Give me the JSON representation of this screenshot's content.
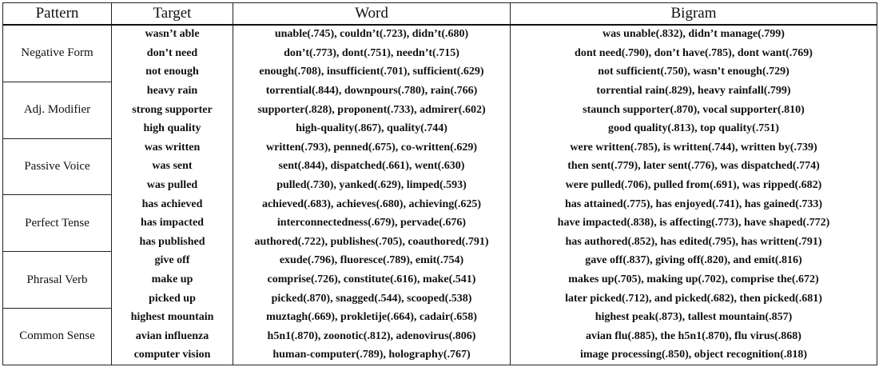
{
  "table": {
    "headers": {
      "pattern": "Pattern",
      "target": "Target",
      "word": "Word",
      "bigram": "Bigram"
    },
    "groups": [
      {
        "pattern": "Negative Form",
        "rows": [
          {
            "target": "wasn’t able",
            "word": "unable(.745), couldn’t(.723), didn’t(.680)",
            "bigram": "was unable(.832), didn’t manage(.799)"
          },
          {
            "target": "don’t need",
            "word": "don’t(.773), dont(.751), needn’t(.715)",
            "bigram": "dont need(.790), don’t have(.785), dont want(.769)"
          },
          {
            "target": "not enough",
            "word": "enough(.708), insufficient(.701), sufficient(.629)",
            "bigram": "not sufficient(.750), wasn’t enough(.729)"
          }
        ]
      },
      {
        "pattern": "Adj. Modifier",
        "rows": [
          {
            "target": "heavy rain",
            "word": "torrential(.844), downpours(.780), rain(.766)",
            "bigram": "torrential rain(.829), heavy rainfall(.799)"
          },
          {
            "target": "strong supporter",
            "word": "supporter(.828), proponent(.733), admirer(.602)",
            "bigram": "staunch supporter(.870), vocal supporter(.810)"
          },
          {
            "target": "high quality",
            "word": "high-quality(.867), quality(.744)",
            "bigram": "good quality(.813), top quality(.751)"
          }
        ]
      },
      {
        "pattern": "Passive Voice",
        "rows": [
          {
            "target": "was written",
            "word": "written(.793), penned(.675), co-written(.629)",
            "bigram": "were written(.785), is written(.744), written by(.739)"
          },
          {
            "target": "was sent",
            "word": "sent(.844), dispatched(.661), went(.630)",
            "bigram": "then sent(.779), later sent(.776), was dispatched(.774)"
          },
          {
            "target": "was pulled",
            "word": "pulled(.730), yanked(.629), limped(.593)",
            "bigram": "were pulled(.706), pulled from(.691), was ripped(.682)"
          }
        ]
      },
      {
        "pattern": "Perfect Tense",
        "rows": [
          {
            "target": "has achieved",
            "word": "achieved(.683), achieves(.680), achieving(.625)",
            "bigram": "has attained(.775), has enjoyed(.741), has gained(.733)"
          },
          {
            "target": "has impacted",
            "word": "interconnectedness(.679), pervade(.676)",
            "bigram": "have impacted(.838), is affecting(.773), have shaped(.772)"
          },
          {
            "target": "has published",
            "word": "authored(.722), publishes(.705), coauthored(.791)",
            "bigram": "has authored(.852), has edited(.795), has written(.791)"
          }
        ]
      },
      {
        "pattern": "Phrasal Verb",
        "rows": [
          {
            "target": "give off",
            "word": "exude(.796), fluoresce(.789), emit(.754)",
            "bigram": "gave off(.837), giving off(.820), and emit(.816)"
          },
          {
            "target": "make up",
            "word": "comprise(.726), constitute(.616), make(.541)",
            "bigram": "makes up(.705), making up(.702), comprise the(.672)"
          },
          {
            "target": "picked up",
            "word": "picked(.870), snagged(.544), scooped(.538)",
            "bigram": "later picked(.712), and picked(.682), then picked(.681)"
          }
        ]
      },
      {
        "pattern": "Common Sense",
        "rows": [
          {
            "target": "highest mountain",
            "word": "muztagh(.669), prokletije(.664), cadair(.658)",
            "bigram": "highest peak(.873), tallest mountain(.857)"
          },
          {
            "target": "avian influenza",
            "word": "h5n1(.870), zoonotic(.812), adenovirus(.806)",
            "bigram": "avian flu(.885), the h5n1(.870), flu virus(.868)"
          },
          {
            "target": "computer vision",
            "word": "human-computer(.789), holography(.767)",
            "bigram": "image processing(.850), object recognition(.818)"
          }
        ]
      }
    ]
  }
}
